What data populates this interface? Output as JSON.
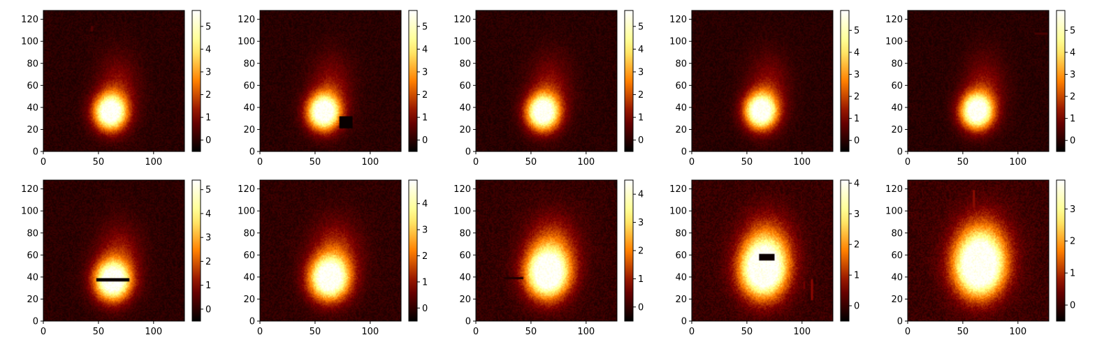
{
  "chart_data": [
    {
      "type": "heatmap",
      "colormap": "afmhot",
      "xlim": [
        0,
        128
      ],
      "ylim": [
        0,
        128
      ],
      "xticks": [
        0,
        50,
        100
      ],
      "yticks": [
        0,
        20,
        40,
        60,
        80,
        100,
        120
      ],
      "colorbar": {
        "min": -0.5,
        "max": 5.7,
        "ticks": [
          0,
          1,
          2,
          3,
          4,
          5
        ]
      },
      "blob": {
        "cx": 60,
        "cy": 35,
        "sx": 10,
        "sy": 11,
        "peak": 5.7,
        "tail_cx": 67,
        "tail_cy": 55,
        "tail_sx": 13,
        "tail_sy": 22,
        "tail_amp": 1.3
      },
      "artifacts": [
        {
          "shape": "rect",
          "x0": 43,
          "x1": 45,
          "y0": 109,
          "y1": 114,
          "value": 0.5
        }
      ]
    },
    {
      "type": "heatmap",
      "colormap": "afmhot",
      "xlim": [
        0,
        128
      ],
      "ylim": [
        0,
        128
      ],
      "xticks": [
        0,
        50,
        100
      ],
      "yticks": [
        0,
        20,
        40,
        60,
        80,
        100,
        120
      ],
      "colorbar": {
        "min": -0.5,
        "max": 5.7,
        "ticks": [
          0,
          1,
          2,
          3,
          4,
          5
        ]
      },
      "blob": {
        "cx": 57,
        "cy": 35,
        "sx": 10,
        "sy": 11,
        "peak": 5.7,
        "tail_cx": 64,
        "tail_cy": 55,
        "tail_sx": 13,
        "tail_sy": 22,
        "tail_amp": 1.3
      },
      "artifacts": [
        {
          "shape": "rect",
          "x0": 72,
          "x1": 84,
          "y0": 21,
          "y1": 32,
          "value": -0.4
        }
      ]
    },
    {
      "type": "heatmap",
      "colormap": "afmhot",
      "xlim": [
        0,
        128
      ],
      "ylim": [
        0,
        128
      ],
      "xticks": [
        0,
        50,
        100
      ],
      "yticks": [
        0,
        20,
        40,
        60,
        80,
        100,
        120
      ],
      "colorbar": {
        "min": -0.5,
        "max": 5.7,
        "ticks": [
          0,
          1,
          2,
          3,
          4,
          5
        ]
      },
      "blob": {
        "cx": 60,
        "cy": 35,
        "sx": 10,
        "sy": 11,
        "peak": 5.7,
        "tail_cx": 67,
        "tail_cy": 55,
        "tail_sx": 13,
        "tail_sy": 22,
        "tail_amp": 1.3
      },
      "artifacts": []
    },
    {
      "type": "heatmap",
      "colormap": "afmhot",
      "xlim": [
        0,
        128
      ],
      "ylim": [
        0,
        128
      ],
      "xticks": [
        0,
        50,
        100
      ],
      "yticks": [
        0,
        20,
        40,
        60,
        80,
        100,
        120
      ],
      "colorbar": {
        "min": -0.5,
        "max": 5.9,
        "ticks": [
          0,
          1,
          2,
          3,
          4,
          5
        ]
      },
      "blob": {
        "cx": 62,
        "cy": 36,
        "sx": 10,
        "sy": 11,
        "peak": 5.9,
        "tail_cx": 69,
        "tail_cy": 56,
        "tail_sx": 13,
        "tail_sy": 22,
        "tail_amp": 1.3
      },
      "artifacts": []
    },
    {
      "type": "heatmap",
      "colormap": "afmhot",
      "xlim": [
        0,
        128
      ],
      "ylim": [
        0,
        128
      ],
      "xticks": [
        0,
        50,
        100
      ],
      "yticks": [
        0,
        20,
        40,
        60,
        80,
        100,
        120
      ],
      "colorbar": {
        "min": -0.5,
        "max": 5.9,
        "ticks": [
          0,
          1,
          2,
          3,
          4,
          5
        ]
      },
      "blob": {
        "cx": 62,
        "cy": 36,
        "sx": 10,
        "sy": 11,
        "peak": 5.9,
        "tail_cx": 69,
        "tail_cy": 56,
        "tail_sx": 13,
        "tail_sy": 22,
        "tail_amp": 1.3
      },
      "artifacts": [
        {
          "shape": "rect",
          "x0": 115,
          "x1": 127,
          "y0": 106,
          "y1": 107.5,
          "value": 0.4
        }
      ]
    },
    {
      "type": "heatmap",
      "colormap": "afmhot",
      "xlim": [
        0,
        128
      ],
      "ylim": [
        0,
        128
      ],
      "xticks": [
        0,
        50,
        100
      ],
      "yticks": [
        0,
        20,
        40,
        60,
        80,
        100,
        120
      ],
      "colorbar": {
        "min": -0.5,
        "max": 5.4,
        "ticks": [
          0,
          1,
          2,
          3,
          4,
          5
        ]
      },
      "blob": {
        "cx": 62,
        "cy": 36,
        "sx": 11,
        "sy": 12,
        "peak": 5.4,
        "tail_cx": 68,
        "tail_cy": 56,
        "tail_sx": 14,
        "tail_sy": 22,
        "tail_amp": 1.4
      },
      "artifacts": [
        {
          "shape": "rect",
          "x0": 48,
          "x1": 78,
          "y0": 36,
          "y1": 39,
          "value": -0.4
        }
      ]
    },
    {
      "type": "heatmap",
      "colormap": "afmhot",
      "xlim": [
        0,
        128
      ],
      "ylim": [
        0,
        128
      ],
      "xticks": [
        0,
        50,
        100
      ],
      "yticks": [
        0,
        20,
        40,
        60,
        80,
        100,
        120
      ],
      "colorbar": {
        "min": -0.5,
        "max": 4.9,
        "ticks": [
          0,
          1,
          2,
          3,
          4
        ]
      },
      "blob": {
        "cx": 62,
        "cy": 38,
        "sx": 12,
        "sy": 13,
        "peak": 4.9,
        "tail_cx": 68,
        "tail_cy": 58,
        "tail_sx": 15,
        "tail_sy": 22,
        "tail_amp": 1.6
      },
      "artifacts": []
    },
    {
      "type": "heatmap",
      "colormap": "afmhot",
      "xlim": [
        0,
        128
      ],
      "ylim": [
        0,
        128
      ],
      "xticks": [
        0,
        50,
        100
      ],
      "yticks": [
        0,
        20,
        40,
        60,
        80,
        100,
        120
      ],
      "colorbar": {
        "min": -0.5,
        "max": 4.5,
        "ticks": [
          0,
          1,
          2,
          3,
          4
        ]
      },
      "blob": {
        "cx": 64,
        "cy": 42,
        "sx": 13,
        "sy": 15,
        "peak": 4.5,
        "tail_cx": 69,
        "tail_cy": 62,
        "tail_sx": 16,
        "tail_sy": 22,
        "tail_amp": 1.8
      },
      "artifacts": [
        {
          "shape": "rect",
          "x0": 26,
          "x1": 43,
          "y0": 38,
          "y1": 40,
          "value": -0.2
        }
      ]
    },
    {
      "type": "heatmap",
      "colormap": "afmhot",
      "xlim": [
        0,
        128
      ],
      "ylim": [
        0,
        128
      ],
      "xticks": [
        0,
        50,
        100
      ],
      "yticks": [
        0,
        20,
        40,
        60,
        80,
        100,
        120
      ],
      "colorbar": {
        "min": -0.5,
        "max": 4.1,
        "ticks": [
          0,
          1,
          2,
          3,
          4
        ]
      },
      "blob": {
        "cx": 64,
        "cy": 45,
        "sx": 14,
        "sy": 17,
        "peak": 4.1,
        "tail_cx": 68,
        "tail_cy": 64,
        "tail_sx": 16,
        "tail_sy": 22,
        "tail_amp": 1.9
      },
      "artifacts": [
        {
          "shape": "rect",
          "x0": 61,
          "x1": 75,
          "y0": 55,
          "y1": 61,
          "value": -0.4
        },
        {
          "shape": "rect",
          "x0": 108,
          "x1": 110,
          "y0": 19,
          "y1": 38,
          "value": 0.7
        },
        {
          "shape": "rect",
          "x0": 101,
          "x1": 103,
          "y0": 29,
          "y1": 36,
          "value": 0.5
        }
      ]
    },
    {
      "type": "heatmap",
      "colormap": "afmhot",
      "xlim": [
        0,
        128
      ],
      "ylim": [
        0,
        128
      ],
      "xticks": [
        0,
        50,
        100
      ],
      "yticks": [
        0,
        20,
        40,
        60,
        80,
        100,
        120
      ],
      "colorbar": {
        "min": -0.5,
        "max": 3.9,
        "ticks": [
          0,
          1,
          2,
          3
        ]
      },
      "blob": {
        "cx": 64,
        "cy": 47,
        "sx": 15,
        "sy": 18,
        "peak": 3.9,
        "tail_cx": 67,
        "tail_cy": 66,
        "tail_sx": 17,
        "tail_sy": 22,
        "tail_amp": 2.0
      },
      "artifacts": [
        {
          "shape": "rect",
          "x0": 59,
          "x1": 61,
          "y0": 103,
          "y1": 119,
          "value": 0.7
        }
      ]
    }
  ]
}
